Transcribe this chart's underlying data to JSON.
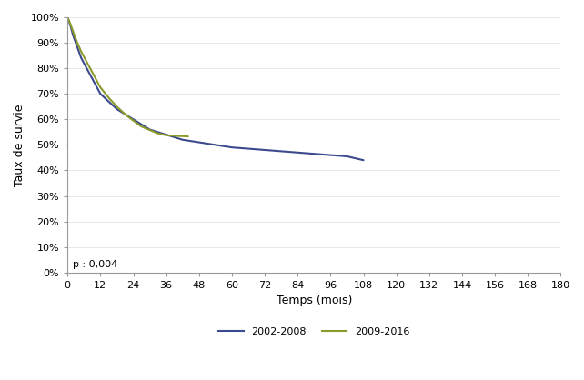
{
  "title": "",
  "xlabel": "Temps (mois)",
  "ylabel": "Taux de survie",
  "annotation": "p : 0,004",
  "xlim": [
    0,
    180
  ],
  "ylim": [
    0,
    1.0
  ],
  "xticks": [
    0,
    12,
    24,
    36,
    48,
    60,
    72,
    84,
    96,
    108,
    120,
    132,
    144,
    156,
    168,
    180
  ],
  "yticks": [
    0.0,
    0.1,
    0.2,
    0.3,
    0.4,
    0.5,
    0.6,
    0.7,
    0.8,
    0.9,
    1.0
  ],
  "ytick_labels": [
    "0%",
    "10%",
    "20%",
    "30%",
    "40%",
    "50%",
    "60%",
    "70%",
    "80%",
    "90%",
    "100%"
  ],
  "line1_color": "#3B4A8C",
  "line2_color": "#8B9A2A",
  "line1_label": "2002-2008",
  "line2_label": "2009-2016",
  "background_color": "#ffffff",
  "curve1_x": [
    0,
    1,
    2,
    3,
    4,
    5,
    6,
    7,
    8,
    9,
    10,
    11,
    12,
    15,
    18,
    21,
    24,
    27,
    30,
    33,
    36,
    42,
    48,
    54,
    60,
    66,
    72,
    78,
    84,
    90,
    96,
    102,
    108
  ],
  "curve1_y": [
    1.0,
    0.97,
    0.93,
    0.9,
    0.87,
    0.84,
    0.82,
    0.8,
    0.78,
    0.76,
    0.74,
    0.72,
    0.7,
    0.67,
    0.64,
    0.62,
    0.6,
    0.58,
    0.56,
    0.55,
    0.54,
    0.52,
    0.51,
    0.5,
    0.49,
    0.485,
    0.48,
    0.475,
    0.47,
    0.465,
    0.46,
    0.455,
    0.44
  ],
  "curve2_x": [
    0,
    1,
    2,
    3,
    4,
    5,
    6,
    7,
    8,
    9,
    10,
    11,
    12,
    15,
    18,
    21,
    24,
    27,
    30,
    33,
    36,
    40,
    44
  ],
  "curve2_y": [
    1.0,
    0.975,
    0.945,
    0.915,
    0.89,
    0.865,
    0.845,
    0.825,
    0.805,
    0.785,
    0.765,
    0.745,
    0.725,
    0.685,
    0.65,
    0.62,
    0.595,
    0.572,
    0.558,
    0.545,
    0.538,
    0.535,
    0.533
  ]
}
